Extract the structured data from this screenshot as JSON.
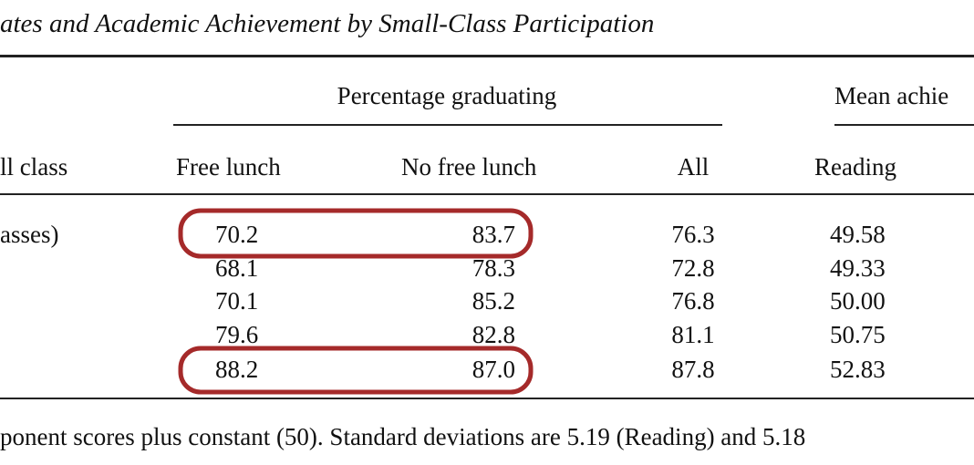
{
  "title": "ates and Academic Achievement by Small-Class Participation",
  "table": {
    "group_headers": [
      "Percentage graduating",
      "Mean achie"
    ],
    "columns": [
      "ll class",
      "Free lunch",
      "No free lunch",
      "All",
      "Reading"
    ],
    "rows": [
      {
        "label": "asses)",
        "values": [
          "70.2",
          "83.7",
          "76.3",
          "49.58"
        ]
      },
      {
        "values": [
          "68.1",
          "78.3",
          "72.8",
          "49.33"
        ]
      },
      {
        "values": [
          "70.1",
          "85.2",
          "76.8",
          "50.00"
        ]
      },
      {
        "values": [
          "79.6",
          "82.8",
          "81.1",
          "50.75"
        ]
      },
      {
        "values": [
          "88.2",
          "87.0",
          "87.8",
          "52.83"
        ]
      }
    ]
  },
  "footnote": "ponent scores plus constant (50). Standard deviations are 5.19 (Reading) and 5.18"
}
